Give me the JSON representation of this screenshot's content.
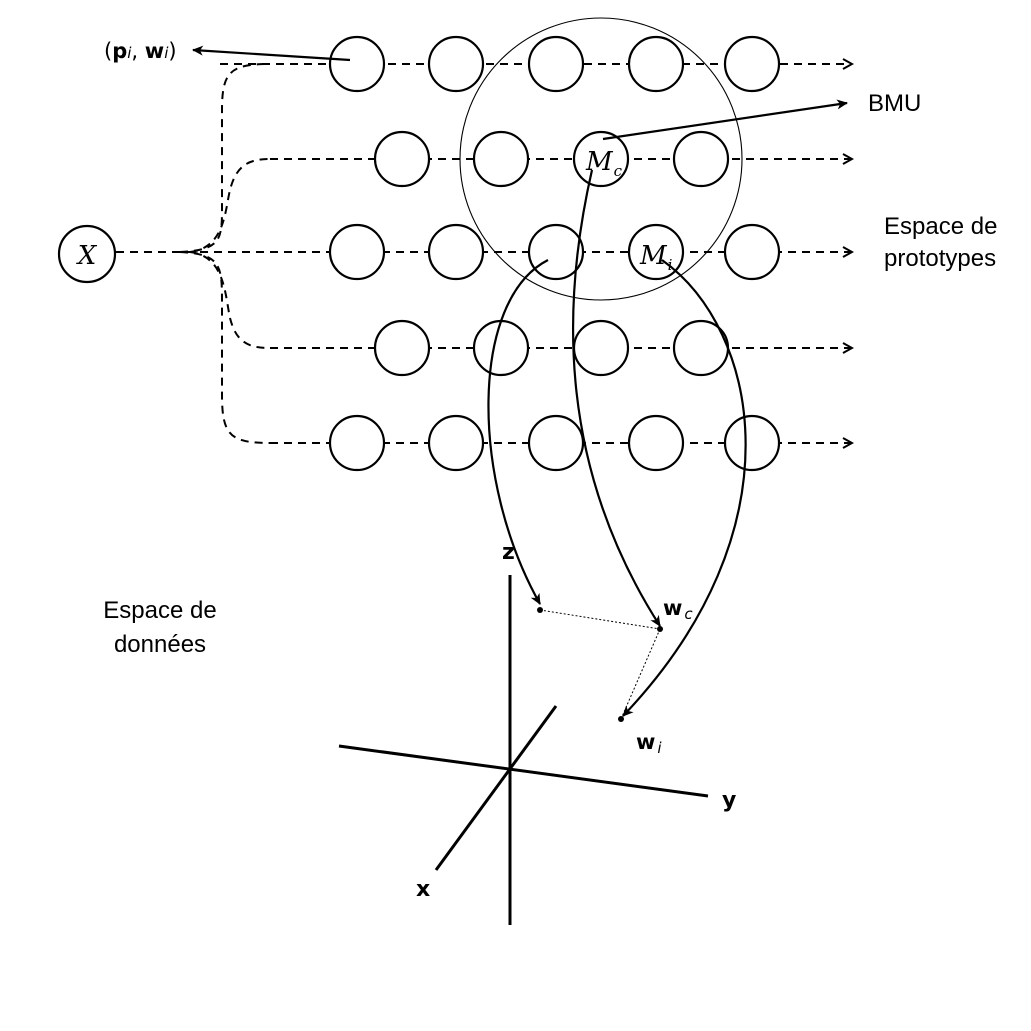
{
  "input": {
    "label": "X"
  },
  "labels": {
    "pair_open": "(",
    "pair_p": "p",
    "pair_i": "i",
    "pair_sep": ", ",
    "pair_w": "w",
    "pair_i2": "i",
    "pair_close": ")",
    "bmu": "BMU",
    "proto_space_line1": "Espace de",
    "proto_space_line2": "prototypes",
    "data_space_line1": "Espace de",
    "data_space_line2": "données",
    "mc_main": "M",
    "mc_sub": "c",
    "mi_main": "M",
    "mi_sub": "i",
    "wc_main": "w",
    "wc_sub": "c",
    "wi_main": "w",
    "wi_sub": "i"
  },
  "axes": {
    "x": "x",
    "y": "y",
    "z": "z"
  }
}
